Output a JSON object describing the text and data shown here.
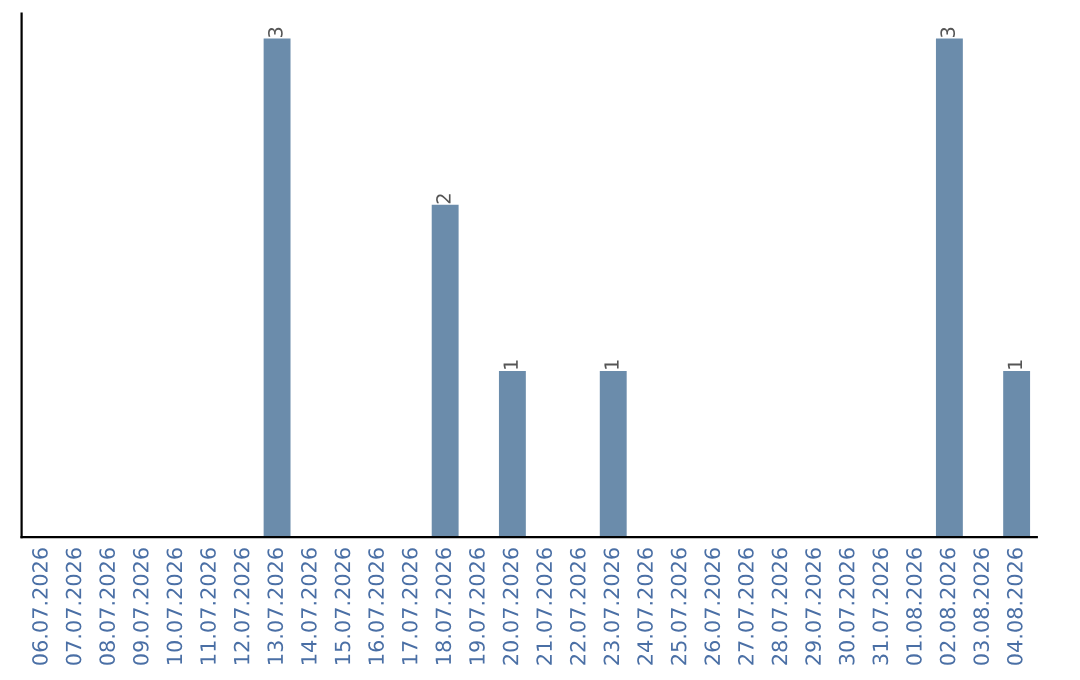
{
  "chart_data": {
    "type": "bar",
    "categories": [
      "06.07.2026",
      "07.07.2026",
      "08.07.2026",
      "09.07.2026",
      "10.07.2026",
      "11.07.2026",
      "12.07.2026",
      "13.07.2026",
      "14.07.2026",
      "15.07.2026",
      "16.07.2026",
      "17.07.2026",
      "18.07.2026",
      "19.07.2026",
      "20.07.2026",
      "21.07.2026",
      "22.07.2026",
      "23.07.2026",
      "24.07.2026",
      "25.07.2026",
      "26.07.2026",
      "27.07.2026",
      "28.07.2026",
      "29.07.2026",
      "30.07.2026",
      "31.07.2026",
      "01.08.2026",
      "02.08.2026",
      "03.08.2026",
      "04.08.2026"
    ],
    "values": [
      null,
      null,
      null,
      null,
      null,
      null,
      null,
      3,
      null,
      null,
      null,
      null,
      2,
      null,
      1,
      null,
      null,
      1,
      null,
      null,
      null,
      null,
      null,
      null,
      null,
      null,
      null,
      3,
      null,
      1
    ],
    "value_labels": [
      null,
      null,
      null,
      null,
      null,
      null,
      null,
      "3",
      null,
      null,
      null,
      null,
      "2",
      null,
      "1",
      null,
      null,
      "1",
      null,
      null,
      null,
      null,
      null,
      null,
      null,
      null,
      null,
      "3",
      null,
      "1"
    ],
    "color": "#6b8cab",
    "ylim": [
      0,
      3.15
    ],
    "tick_labels": "x",
    "grid": false,
    "legend": false
  }
}
